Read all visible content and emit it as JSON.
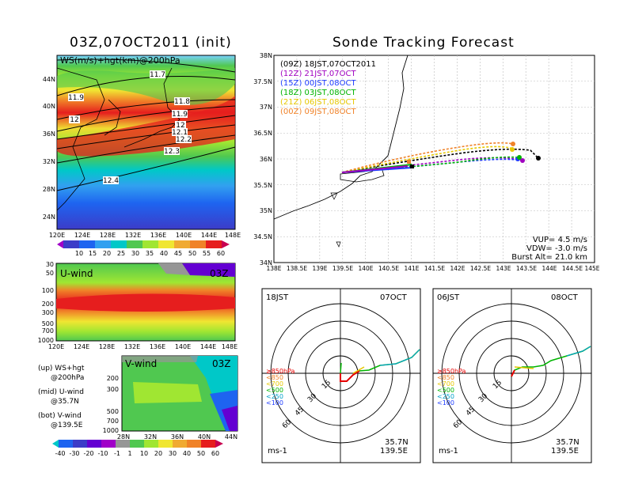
{
  "left": {
    "map_title": "03Z,07OCT2011 (init)",
    "map_label": "WS(m/s)+hgt(km)@200hPa",
    "map_lat_labels": [
      "44N",
      "40N",
      "36N",
      "32N",
      "28N",
      "24N"
    ],
    "map_lon_labels": [
      "120E",
      "124E",
      "128E",
      "132E",
      "136E",
      "140E",
      "144E",
      "148E"
    ],
    "contour_labels": [
      "11.7",
      "11.9",
      "11.8",
      "11.9",
      "12",
      "12",
      "12.1",
      "12.2",
      "12.3",
      "12.4"
    ],
    "ws_colorbar": [
      "10",
      "15",
      "20",
      "25",
      "30",
      "35",
      "40",
      "45",
      "50",
      "55",
      "60"
    ],
    "uwind_label": "U-wind",
    "uwind_time": "03Z",
    "pressure_labels": [
      "30",
      "50",
      "100",
      "200",
      "300",
      "500",
      "700",
      "1000"
    ],
    "uwind_lon_labels": [
      "120E",
      "124E",
      "128E",
      "132E",
      "136E",
      "140E",
      "144E",
      "148E"
    ],
    "vwind_label": "V-wind",
    "vwind_time": "03Z",
    "vwind_lat_labels": [
      "28N",
      "32N",
      "36N",
      "40N",
      "44N"
    ],
    "vwind_colorbar": [
      "-40",
      "-30",
      "-20",
      "-10",
      "-1",
      "1",
      "10",
      "20",
      "30",
      "40",
      "50",
      "60"
    ],
    "notes": [
      {
        "line1": "(up) WS+hgt",
        "line2": "@200hPa"
      },
      {
        "line1": "(mid) U-wind",
        "line2": "@35.7N"
      },
      {
        "line1": "(bot) V-wind",
        "line2": "@139.5E"
      }
    ]
  },
  "track": {
    "title": "Sonde Tracking Forecast",
    "lat_labels": [
      "38N",
      "37.5N",
      "37N",
      "36.5N",
      "36N",
      "35.5N",
      "35N",
      "34.5N",
      "34N"
    ],
    "lon_labels": [
      "138E",
      "138.5E",
      "139E",
      "139.5E",
      "140E",
      "140.5E",
      "141E",
      "141.5E",
      "142E",
      "142.5E",
      "143E",
      "143.5E",
      "144E",
      "144.5E",
      "145E"
    ],
    "legend": [
      {
        "text": "(09Z) 18JST,07OCT2011",
        "color": "#000000"
      },
      {
        "text": "(12Z) 21JST,07OCT",
        "color": "#a000c0"
      },
      {
        "text": "(15Z) 00JST,08OCT",
        "color": "#1e3cff"
      },
      {
        "text": "(18Z) 03JST,08OCT",
        "color": "#00b400"
      },
      {
        "text": "(21Z) 06JST,08OCT",
        "color": "#e6c800"
      },
      {
        "text": "(00Z) 09JST,08OCT",
        "color": "#f08228"
      }
    ],
    "params": [
      "VUP= 4.5 m/s",
      "VDW= -3.0 m/s",
      "Burst Alt= 21.0 km"
    ]
  },
  "hodo": [
    {
      "time": "18JST",
      "date": "07OCT",
      "lat": "35.7N",
      "lon": "139.5E",
      "unit": "ms-1"
    },
    {
      "time": "06JST",
      "date": "08OCT",
      "lat": "35.7N",
      "lon": "139.5E",
      "unit": "ms-1"
    }
  ],
  "hodo_ring_labels": [
    "15",
    "30",
    "45",
    "60"
  ],
  "hodo_legend": [
    {
      "text": "≥850hPa",
      "color": "#e60000"
    },
    {
      "text": "<850",
      "color": "#f08228"
    },
    {
      "text": "<700",
      "color": "#e6c800"
    },
    {
      "text": "<500",
      "color": "#00b400"
    },
    {
      "text": "<250",
      "color": "#00a0c8"
    },
    {
      "text": "<100",
      "color": "#1e3cff"
    }
  ],
  "colors": {
    "purple": "#a000c0",
    "blue": "#1e3cff",
    "green": "#00b400",
    "yellow": "#e6c800",
    "orange": "#f08228",
    "red": "#e60000"
  }
}
